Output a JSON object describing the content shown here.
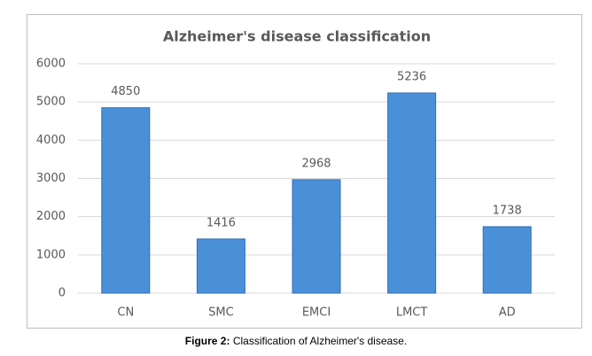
{
  "chart_data": {
    "type": "bar",
    "title": "Alzheimer's disease classification",
    "categories": [
      "CN",
      "SMC",
      "EMCI",
      "LMCT",
      "AD"
    ],
    "values": [
      4850,
      1416,
      2968,
      5236,
      1738
    ],
    "color": "#4a90d9",
    "ylim": [
      0,
      6000
    ],
    "yticks": [
      0,
      1000,
      2000,
      3000,
      4000,
      5000,
      6000
    ],
    "grid": true
  },
  "caption": {
    "label": "Figure 2:",
    "text": "Classification of Alzheimer's disease."
  }
}
